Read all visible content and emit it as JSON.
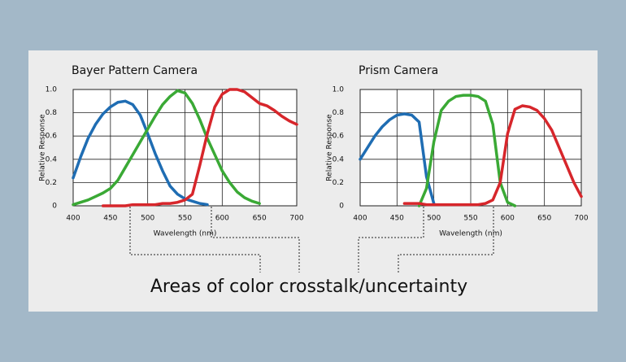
{
  "chart_data": [
    {
      "type": "line",
      "title": "Bayer Pattern Camera",
      "x_label": "Wavelength (nm)",
      "y_label": "Relative Response",
      "x": [
        400,
        410,
        420,
        430,
        440,
        450,
        460,
        470,
        480,
        490,
        500,
        510,
        520,
        530,
        540,
        550,
        560,
        570,
        580,
        590,
        600,
        610,
        620,
        630,
        640,
        650,
        660,
        670,
        680,
        690,
        700
      ],
      "series": [
        {
          "name": "Blue",
          "color": "#1f6db3",
          "values": [
            0.24,
            0.42,
            0.58,
            0.7,
            0.79,
            0.85,
            0.89,
            0.9,
            0.87,
            0.78,
            0.62,
            0.45,
            0.3,
            0.17,
            0.1,
            0.06,
            0.04,
            0.02,
            0.01,
            null,
            null,
            null,
            null,
            null,
            null,
            null,
            null,
            null,
            null,
            null,
            null
          ]
        },
        {
          "name": "Green",
          "color": "#3aa935",
          "values": [
            0.01,
            0.03,
            0.05,
            0.08,
            0.11,
            0.15,
            0.22,
            0.33,
            0.44,
            0.55,
            0.66,
            0.77,
            0.87,
            0.94,
            0.99,
            0.97,
            0.88,
            0.74,
            0.58,
            0.44,
            0.3,
            0.2,
            0.12,
            0.07,
            0.04,
            0.02,
            null,
            null,
            null,
            null,
            null
          ]
        },
        {
          "name": "Red",
          "color": "#d7262b",
          "values": [
            null,
            null,
            null,
            null,
            0,
            0,
            0,
            0,
            0.01,
            0.01,
            0.01,
            0.01,
            0.02,
            0.02,
            0.03,
            0.05,
            0.1,
            0.35,
            0.62,
            0.85,
            0.96,
            1,
            1,
            0.98,
            0.93,
            0.88,
            0.86,
            0.82,
            0.77,
            0.73,
            0.7
          ]
        }
      ],
      "xlim": [
        400,
        700
      ],
      "xticks": [
        400,
        450,
        500,
        550,
        600,
        650,
        700
      ],
      "ylim": [
        0,
        1
      ],
      "yticks": [
        0,
        0.2,
        0.4,
        0.6,
        0.8,
        {
          "value": 1,
          "label": "1.0"
        }
      ],
      "grid": true
    },
    {
      "type": "line",
      "title": "Prism Camera",
      "x_label": "Wavelength (nm)",
      "y_label": "Relative Response",
      "x": [
        400,
        410,
        420,
        430,
        440,
        450,
        460,
        470,
        480,
        490,
        500,
        510,
        520,
        530,
        540,
        550,
        560,
        570,
        580,
        590,
        600,
        610,
        620,
        630,
        640,
        650,
        660,
        670,
        680,
        690,
        700
      ],
      "series": [
        {
          "name": "Blue",
          "color": "#1f6db3",
          "values": [
            0.4,
            0.5,
            0.6,
            0.68,
            0.74,
            0.78,
            0.79,
            0.78,
            0.72,
            0.25,
            0.02,
            null,
            null,
            null,
            null,
            null,
            null,
            null,
            null,
            null,
            null,
            null,
            null,
            null,
            null,
            null,
            null,
            null,
            null,
            null,
            null
          ]
        },
        {
          "name": "Green",
          "color": "#3aa935",
          "values": [
            null,
            null,
            null,
            null,
            null,
            null,
            null,
            null,
            0,
            0.15,
            0.55,
            0.82,
            0.9,
            0.94,
            0.95,
            0.95,
            0.94,
            0.9,
            0.7,
            0.2,
            0.03,
            0,
            null,
            null,
            null,
            null,
            null,
            null,
            null,
            null,
            null
          ]
        },
        {
          "name": "Red",
          "color": "#d7262b",
          "values": [
            null,
            null,
            null,
            null,
            null,
            null,
            0.02,
            0.02,
            0.02,
            0.01,
            0.01,
            0.01,
            0.01,
            0.01,
            0.01,
            0.01,
            0.01,
            0.02,
            0.05,
            0.2,
            0.62,
            0.83,
            0.86,
            0.85,
            0.82,
            0.75,
            0.65,
            0.5,
            0.35,
            0.2,
            0.08
          ]
        }
      ],
      "xlim": [
        400,
        700
      ],
      "xticks": [
        400,
        450,
        500,
        550,
        600,
        650,
        700
      ],
      "ylim": [
        0,
        1
      ],
      "yticks": [
        0,
        0.2,
        0.4,
        0.6,
        0.8,
        {
          "value": 1,
          "label": "1.0"
        }
      ],
      "grid": true
    }
  ],
  "caption": "Areas of color crosstalk/uncertainty"
}
